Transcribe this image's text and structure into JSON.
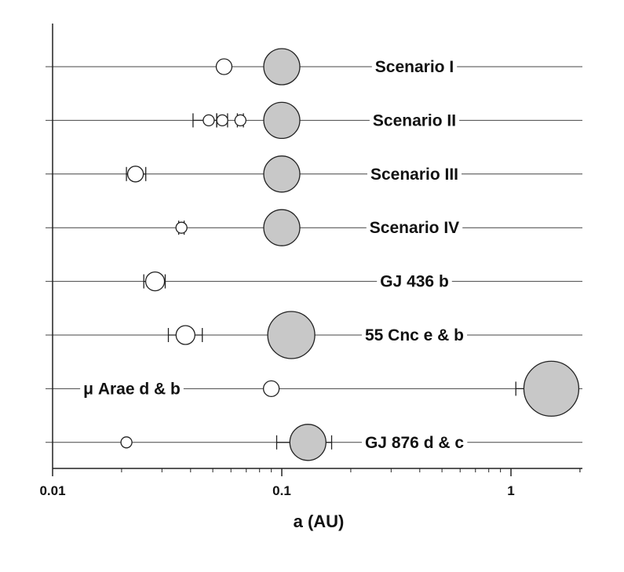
{
  "chart_data": {
    "type": "scatter",
    "xlabel": "a (AU)",
    "xscale": "log",
    "xlim": [
      0.01,
      2
    ],
    "xticks": [
      {
        "value": 0.01,
        "label": "0.01"
      },
      {
        "value": 0.1,
        "label": "0.1"
      },
      {
        "value": 1,
        "label": "1"
      }
    ],
    "rows": [
      {
        "label": "Scenario I",
        "label_pos": "right",
        "planets": [
          {
            "a": 0.056,
            "size": "small",
            "fill": "#ffffff",
            "err": [
              0.054,
              0.058
            ]
          },
          {
            "a": 0.1,
            "size": "large",
            "fill": "#c8c8c8"
          }
        ]
      },
      {
        "label": "Scenario II",
        "label_pos": "right",
        "planets": [
          {
            "a": 0.048,
            "size": "tiny",
            "fill": "#ffffff",
            "err": [
              0.041,
              0.052
            ]
          },
          {
            "a": 0.055,
            "size": "tiny",
            "fill": "#ffffff",
            "err": [
              0.052,
              0.058
            ]
          },
          {
            "a": 0.066,
            "size": "tiny",
            "fill": "#ffffff",
            "err": [
              0.064,
              0.068
            ]
          },
          {
            "a": 0.1,
            "size": "large",
            "fill": "#c8c8c8"
          }
        ]
      },
      {
        "label": "Scenario III",
        "label_pos": "right",
        "planets": [
          {
            "a": 0.023,
            "size": "small",
            "fill": "#ffffff",
            "err": [
              0.021,
              0.0255
            ]
          },
          {
            "a": 0.1,
            "size": "large",
            "fill": "#c8c8c8"
          }
        ]
      },
      {
        "label": "Scenario IV",
        "label_pos": "right",
        "planets": [
          {
            "a": 0.0365,
            "size": "tiny",
            "fill": "#ffffff",
            "err": [
              0.0355,
              0.0375
            ]
          },
          {
            "a": 0.1,
            "size": "large",
            "fill": "#c8c8c8"
          }
        ]
      },
      {
        "label": "GJ 436 b",
        "label_pos": "right",
        "planets": [
          {
            "a": 0.028,
            "size": "medium",
            "fill": "#ffffff",
            "err": [
              0.025,
              0.031
            ]
          }
        ]
      },
      {
        "label": "55 Cnc e & b",
        "label_pos": "right",
        "planets": [
          {
            "a": 0.038,
            "size": "medium",
            "fill": "#ffffff",
            "err": [
              0.032,
              0.045
            ]
          },
          {
            "a": 0.11,
            "size": "xlarge",
            "fill": "#c8c8c8"
          }
        ]
      },
      {
        "label": "μ Arae d & b",
        "label_pos": "left",
        "planets": [
          {
            "a": 0.09,
            "size": "small",
            "fill": "#ffffff"
          },
          {
            "a": 1.5,
            "size": "xxlarge",
            "fill": "#c8c8c8",
            "err": [
              1.05,
              1.95
            ]
          }
        ]
      },
      {
        "label": "GJ 876 d & c",
        "label_pos": "right",
        "planets": [
          {
            "a": 0.021,
            "size": "tiny",
            "fill": "#ffffff"
          },
          {
            "a": 0.13,
            "size": "large",
            "fill": "#c8c8c8",
            "err": [
              0.095,
              0.165
            ]
          }
        ]
      }
    ]
  }
}
